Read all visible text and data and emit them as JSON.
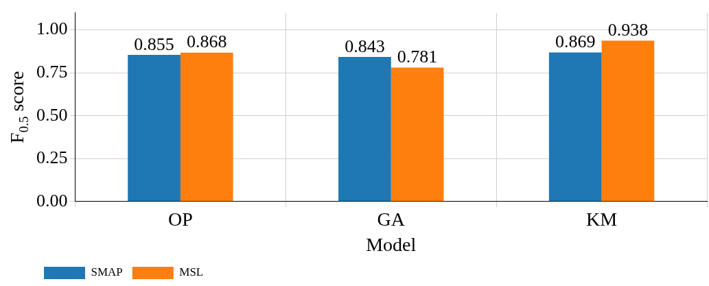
{
  "chart_data": {
    "type": "bar",
    "xlabel": "Model",
    "ylabel": "F$_{0.5}$ score",
    "categories": [
      "OP",
      "GA",
      "KM"
    ],
    "series": [
      {
        "name": "SMAP",
        "color": "#1f77b4",
        "values": [
          0.855,
          0.843,
          0.869
        ]
      },
      {
        "name": "MSL",
        "color": "#ff7f0e",
        "values": [
          0.868,
          0.781,
          0.938
        ]
      }
    ],
    "ylim": [
      0,
      1.1
    ],
    "yticks": [
      {
        "value": 0,
        "label": "0.00"
      },
      {
        "value": 0.25,
        "label": "0.25"
      },
      {
        "value": 0.5,
        "label": "0.50"
      },
      {
        "value": 0.75,
        "label": "0.75"
      },
      {
        "value": 1,
        "label": "1.00"
      }
    ],
    "grid": true,
    "legend": "bottom left",
    "data_labels": true
  }
}
